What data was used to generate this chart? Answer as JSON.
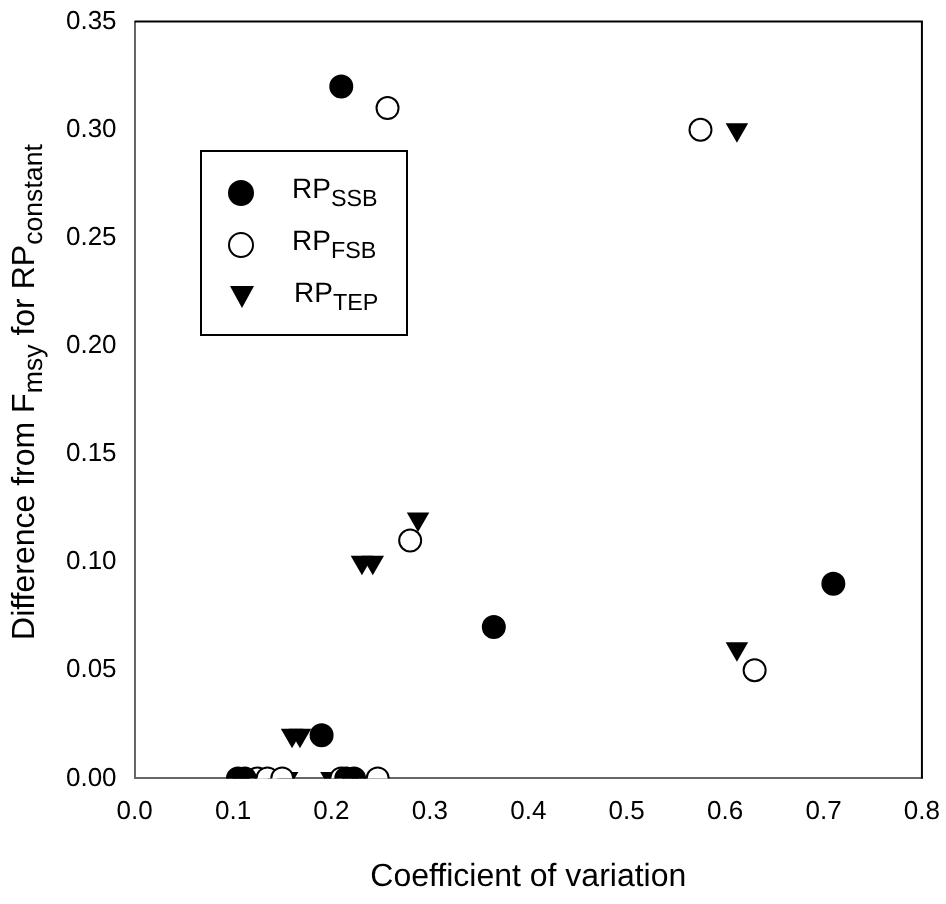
{
  "chart_data": {
    "type": "scatter",
    "xlabel": "Coefficient of variation",
    "ylabel": "Difference from F$_{msy}$ for RP$_{constant}$",
    "xlim": [
      0,
      0.8
    ],
    "xticks": [
      {
        "value": 0,
        "label": "0.0"
      },
      {
        "value": 0.1,
        "label": "0.1"
      },
      {
        "value": 0.2,
        "label": "0.2"
      },
      {
        "value": 0.3,
        "label": "0.3"
      },
      {
        "value": 0.4,
        "label": "0.4"
      },
      {
        "value": 0.5,
        "label": "0.5"
      },
      {
        "value": 0.6,
        "label": "0.6"
      },
      {
        "value": 0.7,
        "label": "0.7"
      },
      {
        "value": 0.8,
        "label": "0.8"
      }
    ],
    "ylim": [
      0,
      0.35
    ],
    "yticks": [
      {
        "value": 0,
        "label": "0.00"
      },
      {
        "value": 0.05,
        "label": "0.05"
      },
      {
        "value": 0.1,
        "label": "0.10"
      },
      {
        "value": 0.15,
        "label": "0.15"
      },
      {
        "value": 0.2,
        "label": "0.20"
      },
      {
        "value": 0.25,
        "label": "0.25"
      },
      {
        "value": 0.3,
        "label": "0.30"
      },
      {
        "value": 0.35,
        "label": "0.35"
      }
    ],
    "grid": false,
    "legend": "top left",
    "series": [
      {
        "name": "RP$_{SSB}$",
        "color": "#000000",
        "marker": "circle",
        "x": [
          0.21,
          0.365,
          0.71,
          0.19,
          0.105,
          0.112,
          0.215,
          0.223
        ],
        "values": [
          0.32,
          0.07,
          0.09,
          0.02,
          0,
          0,
          0,
          0
        ]
      },
      {
        "name": "RP$_{FSB}$",
        "color": "#ffffff",
        "marker": "circle",
        "x": [
          0.257,
          0.575,
          0.28,
          0.63,
          0.125,
          0.135,
          0.15,
          0.21,
          0.247
        ],
        "values": [
          0.31,
          0.3,
          0.11,
          0.05,
          0,
          0,
          0,
          0,
          0
        ]
      },
      {
        "name": "RP$_{TEP}$",
        "color": "#000000",
        "marker": "triangle",
        "x": [
          0.612,
          0.288,
          0.231,
          0.242,
          0.16,
          0.168,
          0.612,
          0.155,
          0.2
        ],
        "values": [
          0.3,
          0.12,
          0.1,
          0.1,
          0.02,
          0.02,
          0.06,
          0,
          0
        ]
      }
    ]
  }
}
